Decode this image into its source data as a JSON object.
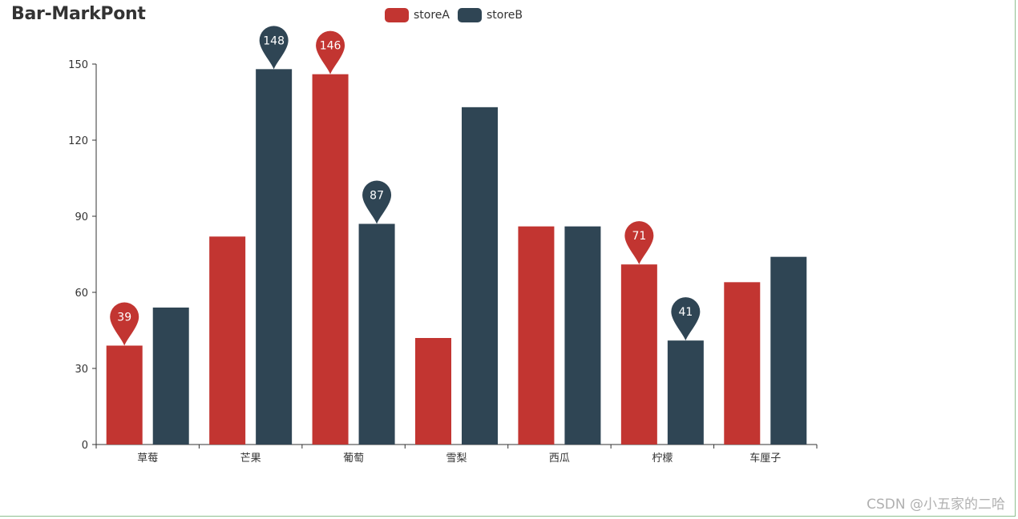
{
  "colors": {
    "storeA": "#c23531",
    "storeB": "#2f4554",
    "axis": "#333333"
  },
  "chart_data": {
    "type": "bar",
    "title": "Bar-MarkPont",
    "categories": [
      "草莓",
      "芒果",
      "葡萄",
      "雪梨",
      "西瓜",
      "柠檬",
      "车厘子"
    ],
    "series": [
      {
        "name": "storeA",
        "values": [
          39,
          82,
          146,
          42,
          86,
          71,
          64
        ],
        "markpoints": [
          {
            "category_index": 0,
            "value": 39
          },
          {
            "category_index": 2,
            "value": 146
          },
          {
            "category_index": 5,
            "value": 71
          }
        ]
      },
      {
        "name": "storeB",
        "values": [
          54,
          148,
          87,
          133,
          86,
          41,
          74
        ],
        "markpoints": [
          {
            "category_index": 1,
            "value": 148
          },
          {
            "category_index": 2,
            "value": 87
          },
          {
            "category_index": 5,
            "value": 41
          }
        ]
      }
    ],
    "yticks": [
      0,
      30,
      60,
      90,
      120,
      150
    ],
    "ylim": [
      0,
      150
    ],
    "xlabel": "",
    "ylabel": "",
    "legend_position": "top-center"
  },
  "watermark": "CSDN @小五家的二哈"
}
